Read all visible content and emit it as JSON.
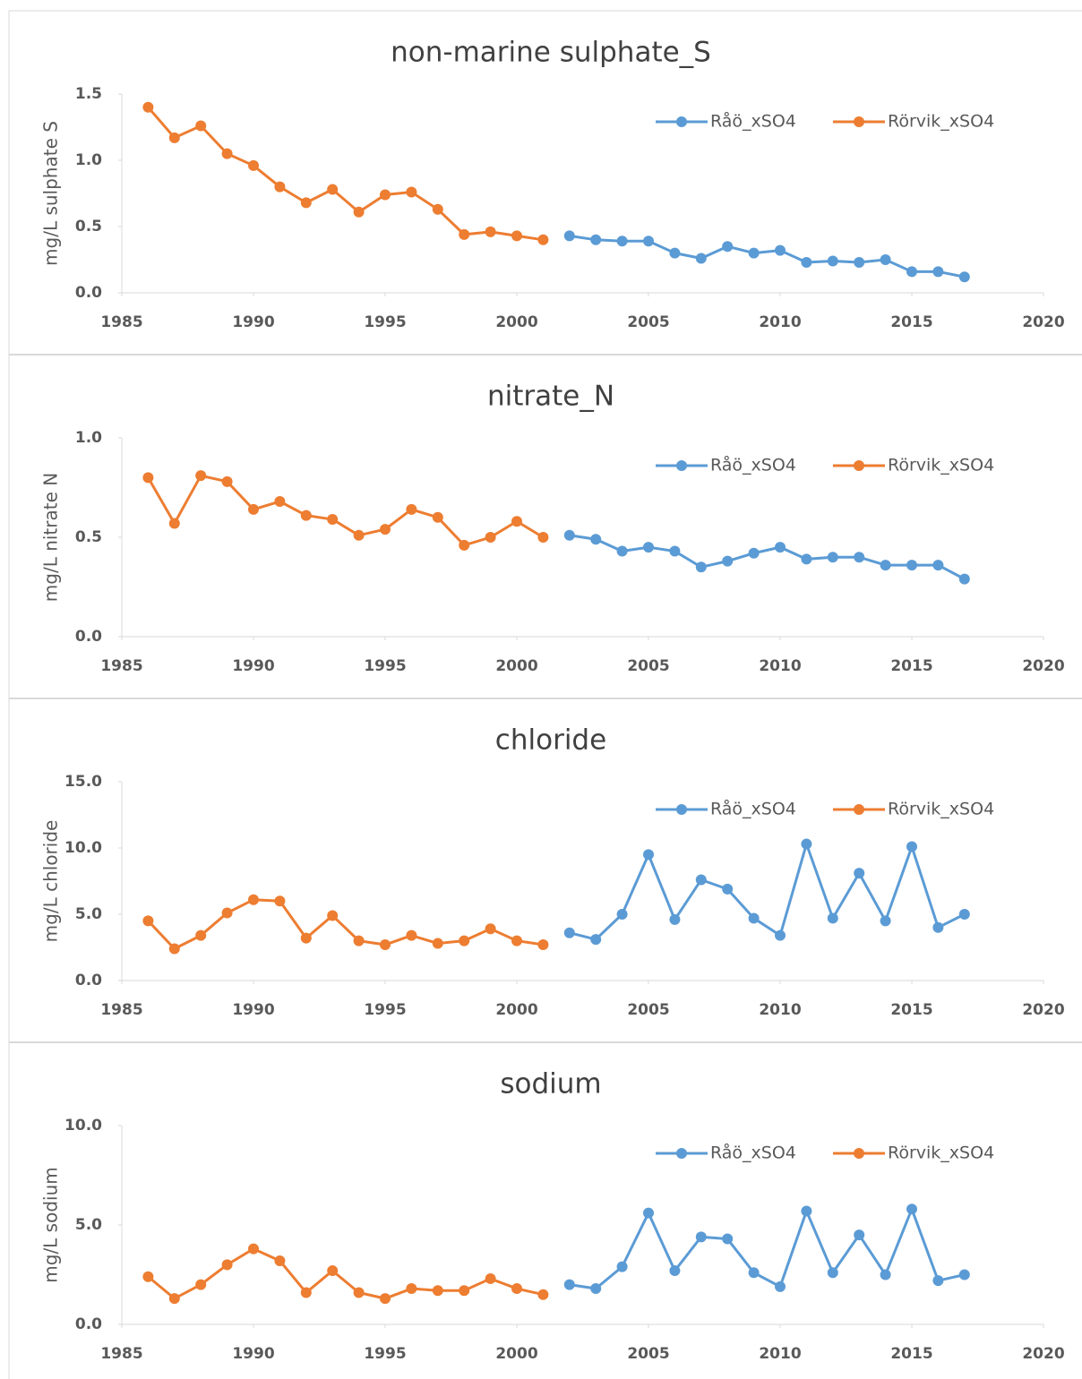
{
  "chart_data": [
    {
      "type": "line",
      "title": "non-marine sulphate_S",
      "y_label": "mg/L sulphate S",
      "xlim": [
        1985,
        2020
      ],
      "xticks": [
        1985,
        1990,
        1995,
        2000,
        2005,
        2010,
        2015,
        2020
      ],
      "ylim": [
        0,
        1.5
      ],
      "yticks": [
        {
          "value": 0,
          "label": "0.0"
        },
        {
          "value": 0.5,
          "label": "0.5"
        },
        {
          "value": 1,
          "label": "1.0"
        },
        {
          "value": 1.5,
          "label": "1.5"
        }
      ],
      "legend": "top-right",
      "series": [
        {
          "name": "Råö_xSO4",
          "color": "#5b9bd5",
          "x": [
            2002,
            2003,
            2004,
            2005,
            2006,
            2007,
            2008,
            2009,
            2010,
            2011,
            2012,
            2013,
            2014,
            2015,
            2016,
            2017
          ],
          "values": [
            0.43,
            0.4,
            0.39,
            0.39,
            0.3,
            0.26,
            0.35,
            0.3,
            0.32,
            0.23,
            0.24,
            0.23,
            0.25,
            0.16,
            0.16,
            0.12
          ]
        },
        {
          "name": "Rörvik_xSO4",
          "color": "#ed7d31",
          "x": [
            1986,
            1987,
            1988,
            1989,
            1990,
            1991,
            1992,
            1993,
            1994,
            1995,
            1996,
            1997,
            1998,
            1999,
            2000,
            2001
          ],
          "values": [
            1.4,
            1.17,
            1.26,
            1.05,
            0.96,
            0.8,
            0.68,
            0.78,
            0.61,
            0.74,
            0.76,
            0.63,
            0.44,
            0.46,
            0.43,
            0.4
          ]
        }
      ]
    },
    {
      "type": "line",
      "title": "nitrate_N",
      "y_label": "mg/L nitrate N",
      "xlim": [
        1985,
        2020
      ],
      "xticks": [
        1985,
        1990,
        1995,
        2000,
        2005,
        2010,
        2015,
        2020
      ],
      "ylim": [
        0,
        1
      ],
      "yticks": [
        {
          "value": 0,
          "label": "0.0"
        },
        {
          "value": 0.5,
          "label": "0.5"
        },
        {
          "value": 1,
          "label": "1.0"
        }
      ],
      "legend": "top-right",
      "series": [
        {
          "name": "Råö_xSO4",
          "color": "#5b9bd5",
          "x": [
            2002,
            2003,
            2004,
            2005,
            2006,
            2007,
            2008,
            2009,
            2010,
            2011,
            2012,
            2013,
            2014,
            2015,
            2016,
            2017
          ],
          "values": [
            0.51,
            0.49,
            0.43,
            0.45,
            0.43,
            0.35,
            0.38,
            0.42,
            0.45,
            0.39,
            0.4,
            0.4,
            0.36,
            0.36,
            0.36,
            0.29
          ]
        },
        {
          "name": "Rörvik_xSO4",
          "color": "#ed7d31",
          "x": [
            1986,
            1987,
            1988,
            1989,
            1990,
            1991,
            1992,
            1993,
            1994,
            1995,
            1996,
            1997,
            1998,
            1999,
            2000,
            2001
          ],
          "values": [
            0.8,
            0.57,
            0.81,
            0.78,
            0.64,
            0.68,
            0.61,
            0.59,
            0.51,
            0.54,
            0.64,
            0.6,
            0.46,
            0.5,
            0.58,
            0.5
          ]
        }
      ]
    },
    {
      "type": "line",
      "title": "chloride",
      "y_label": "mg/L chloride",
      "xlim": [
        1985,
        2020
      ],
      "xticks": [
        1985,
        1990,
        1995,
        2000,
        2005,
        2010,
        2015,
        2020
      ],
      "ylim": [
        0,
        15
      ],
      "yticks": [
        {
          "value": 0,
          "label": "0.0"
        },
        {
          "value": 5,
          "label": "5.0"
        },
        {
          "value": 10,
          "label": "10.0"
        },
        {
          "value": 15,
          "label": "15.0"
        }
      ],
      "legend": "top-right",
      "series": [
        {
          "name": "Råö_xSO4",
          "color": "#5b9bd5",
          "x": [
            2002,
            2003,
            2004,
            2005,
            2006,
            2007,
            2008,
            2009,
            2010,
            2011,
            2012,
            2013,
            2014,
            2015,
            2016,
            2017
          ],
          "values": [
            3.6,
            3.1,
            5.0,
            9.5,
            4.6,
            7.6,
            6.9,
            4.7,
            3.4,
            10.3,
            4.7,
            8.1,
            4.5,
            10.1,
            4.0,
            5.0
          ]
        },
        {
          "name": "Rörvik_xSO4",
          "color": "#ed7d31",
          "x": [
            1986,
            1987,
            1988,
            1989,
            1990,
            1991,
            1992,
            1993,
            1994,
            1995,
            1996,
            1997,
            1998,
            1999,
            2000,
            2001
          ],
          "values": [
            4.5,
            2.4,
            3.4,
            5.1,
            6.1,
            6.0,
            3.2,
            4.9,
            3.0,
            2.7,
            3.4,
            2.8,
            3.0,
            3.9,
            3.0,
            2.7
          ]
        }
      ]
    },
    {
      "type": "line",
      "title": "sodium",
      "y_label": "mg/L sodium",
      "xlim": [
        1985,
        2020
      ],
      "xticks": [
        1985,
        1990,
        1995,
        2000,
        2005,
        2010,
        2015,
        2020
      ],
      "ylim": [
        0,
        10
      ],
      "yticks": [
        {
          "value": 0,
          "label": "0.0"
        },
        {
          "value": 5,
          "label": "5.0"
        },
        {
          "value": 10,
          "label": "10.0"
        }
      ],
      "legend": "top-right",
      "series": [
        {
          "name": "Råö_xSO4",
          "color": "#5b9bd5",
          "x": [
            2002,
            2003,
            2004,
            2005,
            2006,
            2007,
            2008,
            2009,
            2010,
            2011,
            2012,
            2013,
            2014,
            2015,
            2016,
            2017
          ],
          "values": [
            2.0,
            1.8,
            2.9,
            5.6,
            2.7,
            4.4,
            4.3,
            2.6,
            1.9,
            5.7,
            2.6,
            4.5,
            2.5,
            5.8,
            2.2,
            2.5
          ]
        },
        {
          "name": "Rörvik_xSO4",
          "color": "#ed7d31",
          "x": [
            1986,
            1987,
            1988,
            1989,
            1990,
            1991,
            1992,
            1993,
            1994,
            1995,
            1996,
            1997,
            1998,
            1999,
            2000,
            2001
          ],
          "values": [
            2.4,
            1.3,
            2.0,
            3.0,
            3.8,
            3.2,
            1.6,
            2.7,
            1.6,
            1.3,
            1.8,
            1.7,
            1.7,
            2.3,
            1.8,
            1.5
          ]
        }
      ]
    }
  ]
}
